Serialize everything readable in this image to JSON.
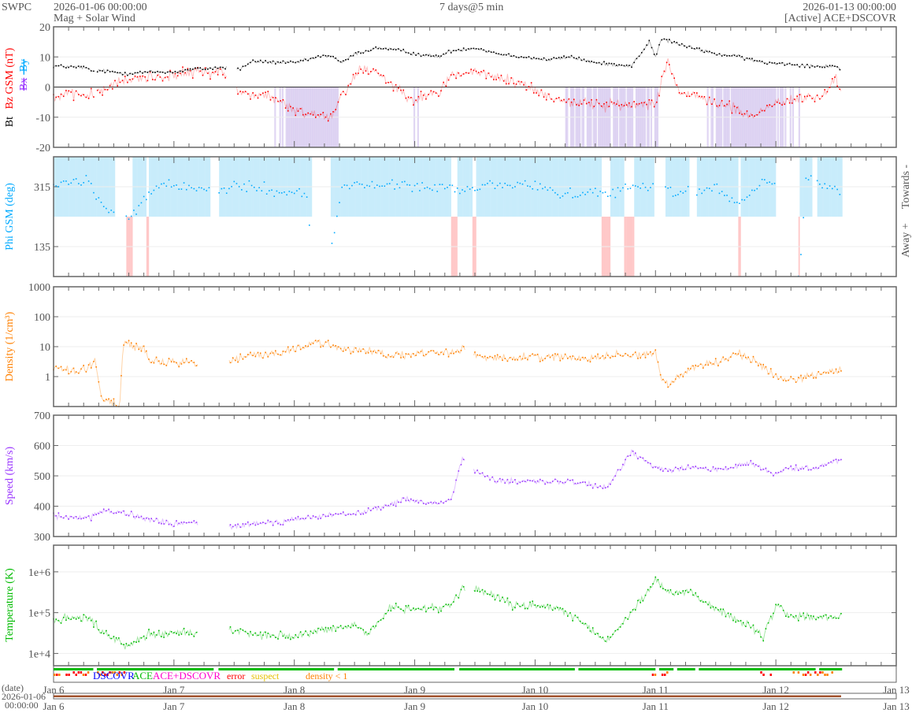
{
  "header": {
    "org": "SWPC",
    "start_time": "2026-01-06 00:00:00",
    "subtitle": "Mag + Solar Wind",
    "span": "7 days@5 min",
    "end_time": "2026-01-13 00:00:00",
    "source": "[Active] ACE+DSCOVR"
  },
  "colors": {
    "bt": "#000000",
    "bz": "#ff0000",
    "bx": "#9933ff",
    "by": "#00aaff",
    "phi": "#00aaff",
    "density": "#ff8000",
    "speed": "#9933ff",
    "temperature": "#00bb00",
    "towards": "#c8ecfb",
    "away": "#ffc8c8",
    "bzneg": "#d8ccf0"
  },
  "status_legend": [
    {
      "label": "DSCOVR",
      "color": "#0000ff"
    },
    {
      "label": "ACE",
      "color": "#00bb00"
    },
    {
      "label": "ACE+DSCOVR",
      "color": "#ff00cc"
    },
    {
      "label": "error",
      "color": "#ff0000"
    },
    {
      "label": "suspect",
      "color": "#e6c000"
    },
    {
      "label": "density < 1",
      "color": "#ff8000"
    }
  ],
  "time_axis": {
    "labels": [
      "Jan 6",
      "Jan 7",
      "Jan 8",
      "Jan 9",
      "Jan 10",
      "Jan 11",
      "Jan 12",
      "Jan 13"
    ],
    "date_label": "(date)",
    "date_value": "2026-01-06",
    "time_value": "00:00:00"
  },
  "chart_data": [
    {
      "type": "scatter",
      "name": "mag",
      "ylabel_parts": [
        "Bt",
        "Bz GSM (nT)",
        "Bx",
        "By"
      ],
      "ylim": [
        -20,
        20
      ],
      "yticks": [
        "20",
        "10",
        "0",
        "-10",
        "-20"
      ],
      "x_unit": "days since 2026-01-06",
      "series": [
        {
          "name": "Bt",
          "anchors": [
            [
              0,
              7
            ],
            [
              0.25,
              6.5
            ],
            [
              0.34,
              5
            ],
            [
              0.37,
              5.5
            ],
            [
              0.6,
              4.5
            ],
            [
              0.8,
              5
            ],
            [
              1.0,
              5
            ],
            [
              1.2,
              6
            ],
            [
              1.4,
              6.5
            ],
            [
              1.55,
              6
            ],
            [
              1.65,
              8.5
            ],
            [
              2.0,
              8
            ],
            [
              2.2,
              10
            ],
            [
              2.3,
              10.5
            ],
            [
              2.4,
              8
            ],
            [
              2.5,
              11
            ],
            [
              2.7,
              13
            ],
            [
              2.9,
              12
            ],
            [
              3.0,
              11
            ],
            [
              3.2,
              10
            ],
            [
              3.3,
              12
            ],
            [
              3.5,
              13
            ],
            [
              3.7,
              11
            ],
            [
              3.9,
              10
            ],
            [
              4.1,
              9
            ],
            [
              4.3,
              10
            ],
            [
              4.5,
              8
            ],
            [
              4.8,
              7
            ],
            [
              4.95,
              15
            ],
            [
              5.0,
              10
            ],
            [
              5.05,
              16
            ],
            [
              5.3,
              13
            ],
            [
              5.5,
              11
            ],
            [
              5.7,
              10
            ],
            [
              5.8,
              9
            ],
            [
              5.9,
              8
            ],
            [
              6.0,
              8
            ],
            [
              6.3,
              7
            ],
            [
              6.5,
              7
            ],
            [
              6.55,
              5
            ]
          ]
        },
        {
          "name": "Bz",
          "anchors": [
            [
              0,
              -3
            ],
            [
              0.3,
              -2.5
            ],
            [
              0.37,
              -2
            ],
            [
              0.5,
              1
            ],
            [
              0.7,
              3
            ],
            [
              1.0,
              4
            ],
            [
              1.2,
              5
            ],
            [
              1.4,
              5
            ],
            [
              1.55,
              -2
            ],
            [
              1.8,
              -3
            ],
            [
              2.0,
              -8
            ],
            [
              2.2,
              -9
            ],
            [
              2.3,
              -10
            ],
            [
              2.4,
              -2
            ],
            [
              2.55,
              6
            ],
            [
              2.7,
              5
            ],
            [
              2.8,
              1
            ],
            [
              3.0,
              -4
            ],
            [
              3.2,
              -2
            ],
            [
              3.3,
              4
            ],
            [
              3.5,
              5
            ],
            [
              3.7,
              3
            ],
            [
              3.9,
              1
            ],
            [
              4.1,
              -3
            ],
            [
              4.3,
              -5
            ],
            [
              4.6,
              -6
            ],
            [
              4.8,
              -6
            ],
            [
              5.0,
              -5
            ],
            [
              5.1,
              9
            ],
            [
              5.2,
              -2
            ],
            [
              5.3,
              -3
            ],
            [
              5.5,
              -5
            ],
            [
              5.7,
              -8
            ],
            [
              5.8,
              -10
            ],
            [
              6.0,
              -5
            ],
            [
              6.2,
              -4
            ],
            [
              6.4,
              -3
            ],
            [
              6.5,
              3
            ],
            [
              6.55,
              -2
            ]
          ]
        }
      ],
      "gaps": [
        [
          0.34,
          0.36
        ],
        [
          1.44,
          1.52
        ]
      ]
    },
    {
      "type": "scatter",
      "name": "phi",
      "ylabel": "Phi GSM (deg)",
      "ylim": [
        45,
        405
      ],
      "yticks": [
        "315",
        "135"
      ],
      "right_labels": [
        "Towards -",
        "Away +"
      ],
      "series": [
        {
          "name": "Phi",
          "anchors": [
            [
              0,
              320
            ],
            [
              0.3,
              330
            ],
            [
              0.4,
              260
            ],
            [
              0.55,
              230
            ],
            [
              0.65,
              220
            ],
            [
              0.75,
              280
            ],
            [
              0.9,
              320
            ],
            [
              1.2,
              310
            ],
            [
              1.4,
              300
            ],
            [
              1.6,
              320
            ],
            [
              1.9,
              300
            ],
            [
              2.1,
              290
            ],
            [
              2.15,
              110
            ],
            [
              2.3,
              120
            ],
            [
              2.4,
              320
            ],
            [
              2.8,
              320
            ],
            [
              3.2,
              315
            ],
            [
              3.4,
              300
            ],
            [
              3.6,
              320
            ],
            [
              4.0,
              320
            ],
            [
              4.3,
              290
            ],
            [
              4.6,
              300
            ],
            [
              4.8,
              310
            ],
            [
              5.0,
              320
            ],
            [
              5.2,
              300
            ],
            [
              5.5,
              310
            ],
            [
              5.7,
              260
            ],
            [
              5.9,
              330
            ],
            [
              6.05,
              320
            ],
            [
              6.1,
              60
            ],
            [
              6.2,
              50
            ],
            [
              6.25,
              340
            ],
            [
              6.4,
              320
            ],
            [
              6.55,
              300
            ]
          ]
        }
      ],
      "away_intervals": [
        [
          0.53,
          0.65
        ],
        [
          0.77,
          0.79
        ],
        [
          2.14,
          2.3
        ],
        [
          3.3,
          3.35
        ],
        [
          3.47,
          3.51
        ],
        [
          4.55,
          4.62
        ],
        [
          4.73,
          4.82
        ],
        [
          6.12,
          6.19
        ],
        [
          5.68,
          5.7
        ]
      ],
      "gaps": [
        [
          0.51,
          0.6
        ],
        [
          1.3,
          1.37
        ],
        [
          2.14,
          2.3
        ],
        [
          4.98,
          5.08
        ],
        [
          5.28,
          5.34
        ],
        [
          6.0,
          6.18
        ],
        [
          6.3,
          6.34
        ]
      ]
    },
    {
      "type": "scatter",
      "name": "density",
      "ylabel": "Density (1/cm³)",
      "yscale": "log",
      "ylim": [
        0.1,
        1000
      ],
      "yticks": [
        "1000",
        "100",
        "10",
        "1"
      ],
      "series": [
        {
          "name": "Density",
          "anchors": [
            [
              0,
              2
            ],
            [
              0.2,
              1.5
            ],
            [
              0.35,
              3
            ],
            [
              0.4,
              0.2
            ],
            [
              0.55,
              0.1
            ],
            [
              0.58,
              15
            ],
            [
              0.75,
              8
            ],
            [
              0.8,
              3
            ],
            [
              1.15,
              3
            ],
            [
              1.2,
              2.5
            ],
            [
              1.45,
              3
            ],
            [
              1.6,
              5
            ],
            [
              1.7,
              5
            ],
            [
              2.0,
              8
            ],
            [
              2.2,
              15
            ],
            [
              2.4,
              8
            ],
            [
              2.6,
              8
            ],
            [
              2.8,
              5
            ],
            [
              3.2,
              6
            ],
            [
              3.4,
              8
            ],
            [
              3.5,
              5
            ],
            [
              3.8,
              4
            ],
            [
              4.1,
              5
            ],
            [
              4.3,
              4
            ],
            [
              4.6,
              5
            ],
            [
              5.0,
              6
            ],
            [
              5.05,
              1
            ],
            [
              5.1,
              0.5
            ],
            [
              5.3,
              2
            ],
            [
              5.5,
              3
            ],
            [
              5.7,
              6
            ],
            [
              5.9,
              2
            ],
            [
              6.1,
              0.7
            ],
            [
              6.3,
              1.2
            ],
            [
              6.5,
              1.5
            ]
          ]
        }
      ],
      "gaps": [
        [
          1.2,
          1.45
        ],
        [
          3.42,
          3.48
        ]
      ]
    },
    {
      "type": "scatter",
      "name": "speed",
      "ylabel": "Speed (km/s)",
      "ylim": [
        300,
        700
      ],
      "yticks": [
        "700",
        "600",
        "500",
        "400",
        "300"
      ],
      "series": [
        {
          "name": "Speed",
          "anchors": [
            [
              0,
              370
            ],
            [
              0.3,
              360
            ],
            [
              0.4,
              380
            ],
            [
              0.55,
              380
            ],
            [
              0.7,
              365
            ],
            [
              1.0,
              340
            ],
            [
              1.15,
              345
            ],
            [
              1.45,
              330
            ],
            [
              1.6,
              340
            ],
            [
              2.0,
              355
            ],
            [
              2.3,
              370
            ],
            [
              2.6,
              380
            ],
            [
              2.9,
              420
            ],
            [
              3.2,
              410
            ],
            [
              3.3,
              420
            ],
            [
              3.4,
              560
            ],
            [
              3.5,
              520
            ],
            [
              3.7,
              480
            ],
            [
              4.0,
              480
            ],
            [
              4.3,
              480
            ],
            [
              4.6,
              460
            ],
            [
              4.8,
              580
            ],
            [
              5.0,
              530
            ],
            [
              5.1,
              520
            ],
            [
              5.3,
              530
            ],
            [
              5.5,
              520
            ],
            [
              5.8,
              540
            ],
            [
              6.0,
              500
            ],
            [
              6.1,
              530
            ],
            [
              6.3,
              520
            ],
            [
              6.5,
              550
            ]
          ]
        }
      ],
      "gaps": [
        [
          1.2,
          1.45
        ],
        [
          3.42,
          3.48
        ]
      ]
    },
    {
      "type": "scatter",
      "name": "temperature",
      "ylabel": "Temperature (K)",
      "yscale": "log",
      "ylim": [
        5000,
        4500000
      ],
      "yticks": [
        "1e+6",
        "1e+5",
        "1e+4"
      ],
      "series": [
        {
          "name": "Temperature",
          "log_anchors": [
            [
              0,
              4.8
            ],
            [
              0.3,
              4.9
            ],
            [
              0.4,
              4.5
            ],
            [
              0.55,
              4.3
            ],
            [
              0.6,
              4.2
            ],
            [
              0.8,
              4.5
            ],
            [
              1.15,
              4.5
            ],
            [
              1.45,
              4.6
            ],
            [
              1.6,
              4.5
            ],
            [
              2.0,
              4.4
            ],
            [
              2.3,
              4.6
            ],
            [
              2.5,
              4.7
            ],
            [
              2.6,
              4.5
            ],
            [
              2.8,
              5.1
            ],
            [
              3.1,
              5.1
            ],
            [
              3.3,
              5.2
            ],
            [
              3.4,
              5.6
            ],
            [
              3.6,
              5.5
            ],
            [
              3.8,
              5.2
            ],
            [
              4.2,
              5.1
            ],
            [
              4.4,
              4.7
            ],
            [
              4.6,
              4.3
            ],
            [
              4.8,
              5.0
            ],
            [
              5.0,
              5.8
            ],
            [
              5.1,
              5.5
            ],
            [
              5.3,
              5.5
            ],
            [
              5.5,
              5.1
            ],
            [
              5.7,
              4.8
            ],
            [
              5.9,
              4.4
            ],
            [
              6.0,
              5.2
            ],
            [
              6.1,
              4.9
            ],
            [
              6.3,
              4.9
            ],
            [
              6.5,
              4.9
            ]
          ]
        }
      ],
      "gaps": [
        [
          1.2,
          1.45
        ],
        [
          3.42,
          3.48
        ]
      ]
    }
  ]
}
